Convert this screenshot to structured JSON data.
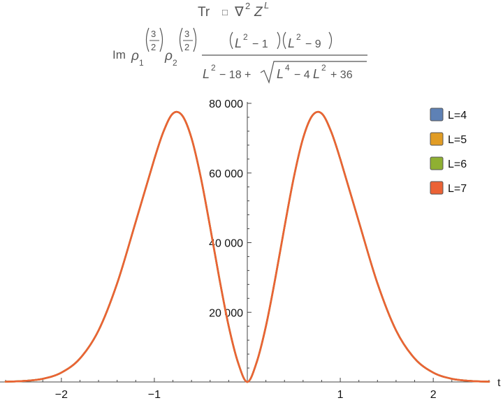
{
  "chart_data": {
    "type": "line",
    "title_line1": {
      "prefix": "Tr",
      "box": "□",
      "nabla": "∇",
      "nabla_pow": "2",
      "z": "Z",
      "z_pow": "L"
    },
    "title_line2": {
      "im": "Im",
      "rho": "ρ",
      "rho1_sub": "1",
      "rho2_sub": "2",
      "exp_num": "3",
      "exp_den": "2",
      "numerator": {
        "f1_base": "L",
        "f1_pow": "2",
        "f1_rest": "− 1",
        "f2_base": "L",
        "f2_pow": "2",
        "f2_rest": "− 9"
      },
      "denominator": {
        "a_base": "L",
        "a_pow": "2",
        "a_rest": "− 18 +",
        "r_base1": "L",
        "r_pow1": "4",
        "r_mid": "− 4",
        "r_base2": "L",
        "r_pow2": "2",
        "r_rest": "+ 36"
      }
    },
    "xlabel": "t",
    "ylabel": "",
    "xlim": [
      -2.6,
      2.6
    ],
    "ylim": [
      0,
      80000
    ],
    "x_ticks": [
      {
        "value": -2,
        "label": "−2"
      },
      {
        "value": -1,
        "label": "−1"
      },
      {
        "value": 1,
        "label": "1"
      },
      {
        "value": 2,
        "label": "2"
      }
    ],
    "y_ticks": [
      {
        "value": 20000,
        "label": "20 000"
      },
      {
        "value": 40000,
        "label": "40 000"
      },
      {
        "value": 60000,
        "label": "60 000"
      },
      {
        "value": 80000,
        "label": "80 000"
      }
    ],
    "legend_position": "top-right",
    "series": [
      {
        "name": "L=4",
        "color": "#5E81B5"
      },
      {
        "name": "L=5",
        "color": "#E19C24"
      },
      {
        "name": "L=6",
        "color": "#8FB032"
      },
      {
        "name": "L=7",
        "color": "#EB6235"
      }
    ],
    "x": [
      -2.6,
      -2.4,
      -2.2,
      -2.0,
      -1.8,
      -1.6,
      -1.4,
      -1.2,
      -1.0,
      -0.9,
      -0.8,
      -0.7,
      -0.6,
      -0.5,
      -0.4,
      -0.3,
      -0.2,
      -0.1,
      0.0,
      0.1,
      0.2,
      0.3,
      0.4,
      0.5,
      0.6,
      0.7,
      0.8,
      0.9,
      1.0,
      1.2,
      1.4,
      1.6,
      1.8,
      2.0,
      2.2,
      2.4,
      2.6
    ],
    "y": [
      80,
      290,
      910,
      2680,
      6740,
      14800,
      28300,
      46000,
      64000,
      72000,
      77100,
      76500,
      70000,
      58700,
      44500,
      29600,
      16000,
      5600,
      0,
      5600,
      16000,
      29600,
      44500,
      58700,
      70000,
      76500,
      77100,
      72000,
      64000,
      46000,
      28300,
      14800,
      6740,
      2680,
      910,
      290,
      80
    ]
  }
}
